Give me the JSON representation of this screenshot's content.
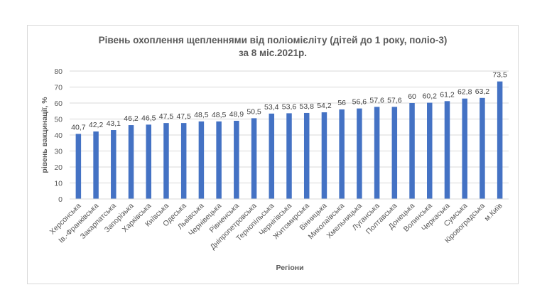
{
  "chart_data": {
    "type": "bar",
    "title_line1": "Рівень охоплення щепленнями від поліомієліту (дітей до 1 року, поліо-3)",
    "title_line2": "за 8 міс.2021р.",
    "xlabel": "Регіони",
    "ylabel": "рівень вакцинації, %",
    "ylim": [
      0,
      80
    ],
    "yticks": [
      0,
      10,
      20,
      30,
      40,
      50,
      60,
      70,
      80
    ],
    "grid": true,
    "bar_color": "#4472c4",
    "categories": [
      "Херсонська",
      "Ів.-Франківська",
      "Закарпатська",
      "Запорізька",
      "Харківська",
      "Київська",
      "Одеська",
      "Львівська",
      "Чернівецька",
      "Рівненська",
      "Дніпропетровська",
      "Тернопільська",
      "Чернігівська",
      "Житомирська",
      "Вінницька",
      "Миколаївська",
      "Хмельницька",
      "Луганська",
      "Полтавська",
      "Донецька",
      "Волинська",
      "Черкаська",
      "Сумська",
      "Кіровоградська",
      "м.Київ"
    ],
    "values": [
      40.7,
      42.2,
      43.1,
      46.2,
      46.5,
      47.5,
      47.5,
      48.5,
      48.5,
      48.9,
      50.5,
      53.4,
      53.6,
      53.8,
      54.2,
      56,
      56.6,
      57.6,
      57.6,
      60,
      60.2,
      61.2,
      62.8,
      63.2,
      73.5
    ],
    "value_labels": [
      "40,7",
      "42,2",
      "43,1",
      "46,2",
      "46,5",
      "47,5",
      "47,5",
      "48,5",
      "48,5",
      "48,9",
      "50,5",
      "53,4",
      "53,6",
      "53,8",
      "54,2",
      "56",
      "56,6",
      "57,6",
      "57,6",
      "60",
      "60,2",
      "61,2",
      "62,8",
      "63,2",
      "73,5"
    ]
  }
}
